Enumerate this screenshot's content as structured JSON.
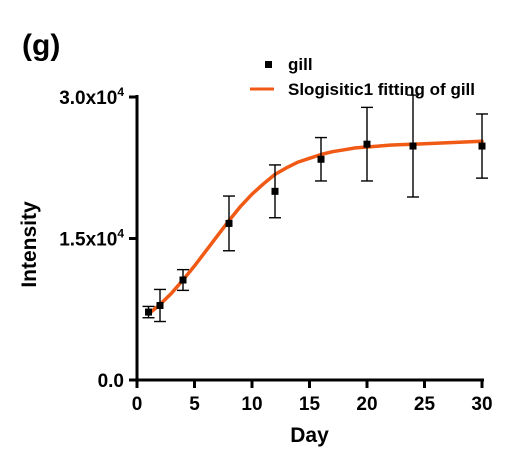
{
  "panel_label": "(g)",
  "chart_data": {
    "type": "scatter",
    "xlabel": "Day",
    "ylabel": "Intensity",
    "xlim": [
      0,
      30
    ],
    "ylim": [
      0,
      30000
    ],
    "x_ticks": [
      0,
      5,
      10,
      15,
      20,
      25,
      30
    ],
    "x_tick_labels": [
      "0",
      "5",
      "10",
      "15",
      "20",
      "25",
      "30"
    ],
    "y_ticks": [
      0,
      15000,
      30000
    ],
    "y_tick_labels": [
      {
        "mantissa": "0.0",
        "exponent": ""
      },
      {
        "mantissa": "1.5x10",
        "exponent": "4"
      },
      {
        "mantissa": "3.0x10",
        "exponent": "4"
      }
    ],
    "grid": false,
    "legend_position": "top-right",
    "series": [
      {
        "name": "gill",
        "kind": "points_with_error_bars",
        "color": "#000000",
        "marker": "square",
        "x": [
          1,
          2,
          4,
          8,
          12,
          16,
          20,
          24,
          30
        ],
        "y": [
          7200,
          7900,
          10600,
          16600,
          20000,
          23400,
          25000,
          24800,
          24800
        ],
        "error": [
          600,
          1700,
          1100,
          2900,
          2800,
          2300,
          3900,
          5400,
          3400
        ]
      },
      {
        "name": "Slogisitic1 fitting of gill",
        "kind": "fit_line",
        "color": "#F05A14",
        "x": [
          1,
          2,
          3,
          4,
          5,
          6,
          7,
          8,
          9,
          10,
          11,
          12,
          13,
          14,
          15,
          16,
          17,
          18,
          19,
          20,
          21,
          22,
          23,
          24,
          25,
          26,
          27,
          28,
          29,
          30
        ],
        "y": [
          7000,
          8000,
          9200,
          10600,
          12100,
          13700,
          15300,
          16900,
          18400,
          19700,
          20800,
          21800,
          22500,
          23100,
          23500,
          23900,
          24200,
          24400,
          24600,
          24700,
          24800,
          24900,
          24950,
          25000,
          25050,
          25100,
          25150,
          25200,
          25250,
          25300
        ]
      }
    ]
  }
}
